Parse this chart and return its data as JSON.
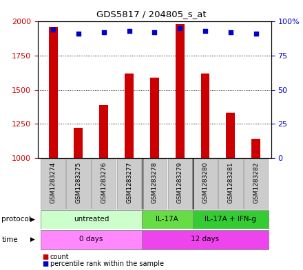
{
  "title": "GDS5817 / 204805_s_at",
  "samples": [
    "GSM1283274",
    "GSM1283275",
    "GSM1283276",
    "GSM1283277",
    "GSM1283278",
    "GSM1283279",
    "GSM1283280",
    "GSM1283281",
    "GSM1283282"
  ],
  "counts": [
    1960,
    1220,
    1390,
    1620,
    1590,
    1980,
    1620,
    1330,
    1140
  ],
  "percentile_ranks": [
    94,
    91,
    92,
    93,
    92,
    95,
    93,
    92,
    91
  ],
  "ylim_left": [
    1000,
    2000
  ],
  "ylim_right": [
    0,
    100
  ],
  "yticks_left": [
    1000,
    1250,
    1500,
    1750,
    2000
  ],
  "yticks_right": [
    0,
    25,
    50,
    75,
    100
  ],
  "bar_color": "#cc0000",
  "dot_color": "#0000cc",
  "protocol_colors": [
    "#ccffcc",
    "#66dd44",
    "#33cc33"
  ],
  "time_colors": [
    "#ff88ff",
    "#ee44ee"
  ],
  "legend_count_color": "#cc0000",
  "legend_dot_color": "#0000cc",
  "background_color": "#ffffff",
  "tick_label_color_left": "#cc0000",
  "tick_label_color_right": "#0000cc",
  "bar_width": 0.35,
  "sample_box_color": "#cccccc",
  "sample_box_edge": "#999999"
}
